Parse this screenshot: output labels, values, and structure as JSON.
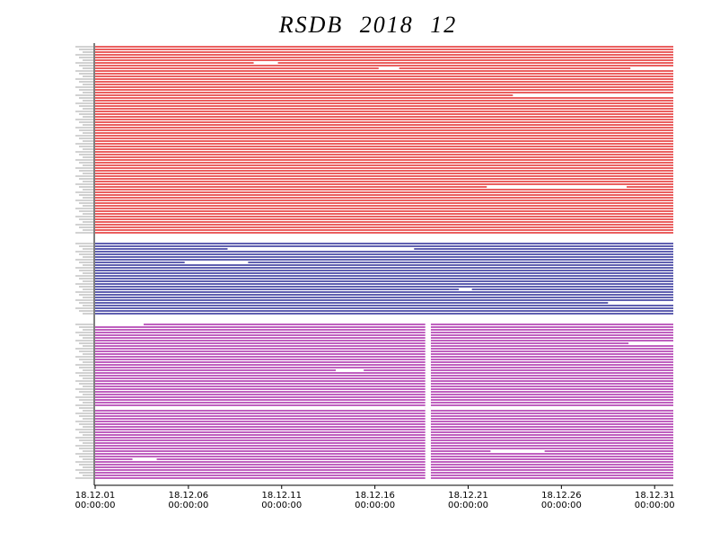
{
  "chart_data": {
    "type": "timeline",
    "title": "RSDB 2018 12",
    "xlim": [
      1,
      32
    ],
    "xticks": [
      {
        "value": 1,
        "label": "18.12.01",
        "sublabel": "00:00:00"
      },
      {
        "value": 6,
        "label": "18.12.06",
        "sublabel": "00:00:00"
      },
      {
        "value": 11,
        "label": "18.12.11",
        "sublabel": "00:00:00"
      },
      {
        "value": 16,
        "label": "18.12.16",
        "sublabel": "00:00:00"
      },
      {
        "value": 21,
        "label": "18.12.21",
        "sublabel": "00:00:00"
      },
      {
        "value": 26,
        "label": "18.12.26",
        "sublabel": "00:00:00"
      },
      {
        "value": 31,
        "label": "18.12.31",
        "sublabel": "00:00:00"
      }
    ],
    "series": [
      {
        "color": "#dd0000",
        "rows": 70,
        "gaps": [
          [
            6,
            6,
            9.5,
            10.8
          ],
          [
            8,
            8,
            16.2,
            17.3
          ],
          [
            8,
            8,
            29.7,
            32
          ],
          [
            18,
            18,
            23.4,
            32
          ],
          [
            52,
            52,
            22.0,
            29.5
          ]
        ]
      },
      {
        "color": "#000080",
        "rows": 27,
        "gaps": [
          [
            2,
            2,
            8.1,
            18.1
          ],
          [
            7,
            7,
            5.8,
            9.2
          ],
          [
            17,
            17,
            20.5,
            21.2
          ],
          [
            22,
            22,
            28.5,
            32
          ]
        ]
      },
      {
        "color": "#990099",
        "rows": 58,
        "gaps": [
          [
            0,
            57,
            18.7,
            19.0
          ],
          [
            0,
            0,
            1,
            3.6
          ],
          [
            7,
            7,
            29.6,
            32
          ],
          [
            17,
            17,
            13.9,
            15.4
          ],
          [
            31,
            31,
            1,
            18.7
          ],
          [
            31,
            31,
            19.0,
            32
          ],
          [
            47,
            47,
            22.2,
            25.1
          ],
          [
            50,
            50,
            3,
            4.3
          ]
        ]
      }
    ]
  }
}
